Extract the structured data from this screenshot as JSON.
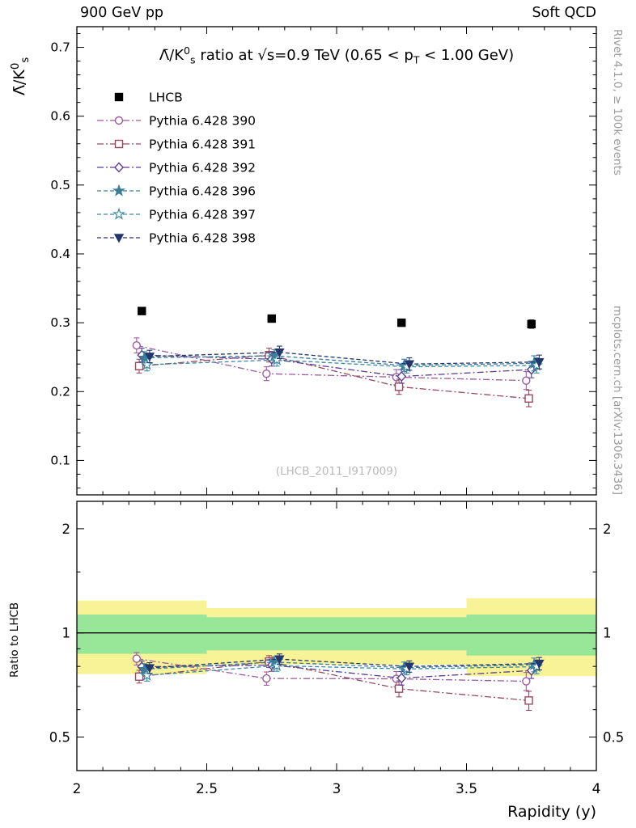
{
  "page": {
    "header": {
      "left": "900 GeV pp",
      "right": "Soft QCD"
    },
    "side_labels": {
      "top_right": "Rivet 4.1.0, ≥ 100k events",
      "bottom_right": "mcplots.cern.ch [arXiv:1306.3436]"
    },
    "watermark": "(LHCB_2011_I917009)",
    "colors": {
      "frame": "#000000",
      "gray_label": "#999999",
      "watermark": "#b9b9b9",
      "band_yellow": "#f9f397",
      "band_green": "#98e698",
      "ref_line": "#000000"
    }
  },
  "chart_data": {
    "type": "line",
    "title": "Λ̄/K^{0}_{s} ratio at √s=0.9 TeV (0.65 < p_{T} < 1.00 GeV)",
    "xlabel": "Rapidity (y)",
    "ylabel_main": "Λ̄/K^{0}_{s}",
    "ylabel_ratio": "Ratio to LHCB",
    "xlim": [
      2,
      4
    ],
    "main_ylim": [
      0.05,
      0.73
    ],
    "main_yticks": [
      0.1,
      0.2,
      0.3,
      0.4,
      0.5,
      0.6,
      0.7
    ],
    "main_ytick_labels": [
      "0.1",
      "0.2",
      "0.3",
      "0.4",
      "0.5",
      "0.6",
      "0.7"
    ],
    "xticks": [
      2,
      2.5,
      3,
      3.5,
      4
    ],
    "xtick_labels": [
      "2",
      "2.5",
      "3",
      "3.5",
      "4"
    ],
    "ratio_scale": "log",
    "ratio_ylim": [
      0.4,
      2.4
    ],
    "ratio_yticks": [
      0.5,
      1,
      2
    ],
    "ratio_ytick_labels": [
      "0.5",
      "1",
      "2"
    ],
    "ratio_yminor": [
      0.4,
      0.6,
      0.7,
      0.8,
      0.9,
      1.5
    ],
    "x": [
      2.25,
      2.75,
      3.25,
      3.75
    ],
    "series": [
      {
        "name": "LHCB",
        "marker": "square",
        "filled": true,
        "color": "#000000",
        "linestyle": "none",
        "xoffset": 0,
        "values": [
          0.317,
          0.306,
          0.3,
          0.298
        ],
        "errors": [
          0.005,
          0.005,
          0.005,
          0.006
        ]
      },
      {
        "name": "Pythia 6.428 390",
        "marker": "circle",
        "filled": false,
        "color": "#9c5a9c",
        "linestyle": "dashdot",
        "xoffset": -0.02,
        "values": [
          0.267,
          0.226,
          0.221,
          0.216
        ],
        "errors": [
          0.011,
          0.01,
          0.011,
          0.013
        ]
      },
      {
        "name": "Pythia 6.428 391",
        "marker": "square",
        "filled": false,
        "color": "#97495f",
        "linestyle": "dashdot",
        "xoffset": -0.01,
        "values": [
          0.237,
          0.253,
          0.207,
          0.19
        ],
        "errors": [
          0.01,
          0.01,
          0.011,
          0.012
        ]
      },
      {
        "name": "Pythia 6.428 392",
        "marker": "diamond",
        "filled": false,
        "color": "#583e96",
        "linestyle": "dashdot",
        "xoffset": 0,
        "values": [
          0.253,
          0.247,
          0.222,
          0.232
        ],
        "errors": [
          0.01,
          0.01,
          0.01,
          0.012
        ]
      },
      {
        "name": "Pythia 6.428 396",
        "marker": "star",
        "filled": true,
        "color": "#3a7d99",
        "linestyle": "dashed",
        "xoffset": 0.01,
        "values": [
          0.249,
          0.252,
          0.238,
          0.241
        ],
        "errors": [
          0.009,
          0.009,
          0.009,
          0.011
        ]
      },
      {
        "name": "Pythia 6.428 397",
        "marker": "star",
        "filled": false,
        "color": "#3a8aa2",
        "linestyle": "dashed",
        "xoffset": 0.02,
        "values": [
          0.239,
          0.246,
          0.236,
          0.238
        ],
        "errors": [
          0.009,
          0.009,
          0.009,
          0.011
        ]
      },
      {
        "name": "Pythia 6.428 398",
        "marker": "triangle-down",
        "filled": true,
        "color": "#24366e",
        "linestyle": "dashed",
        "xoffset": 0.03,
        "values": [
          0.251,
          0.257,
          0.24,
          0.243
        ],
        "errors": [
          0.009,
          0.009,
          0.009,
          0.01
        ]
      }
    ],
    "ratio_bands": {
      "bins": [
        {
          "x0": 2.0,
          "x1": 2.5,
          "yellow": [
            0.76,
            1.24
          ],
          "green": [
            0.87,
            1.13
          ]
        },
        {
          "x0": 2.5,
          "x1": 3.0,
          "yellow": [
            0.81,
            1.18
          ],
          "green": [
            0.89,
            1.11
          ]
        },
        {
          "x0": 3.0,
          "x1": 3.5,
          "yellow": [
            0.81,
            1.18
          ],
          "green": [
            0.89,
            1.11
          ]
        },
        {
          "x0": 3.5,
          "x1": 4.0,
          "yellow": [
            0.75,
            1.26
          ],
          "green": [
            0.86,
            1.13
          ]
        }
      ]
    },
    "legend_position": "top-left"
  }
}
